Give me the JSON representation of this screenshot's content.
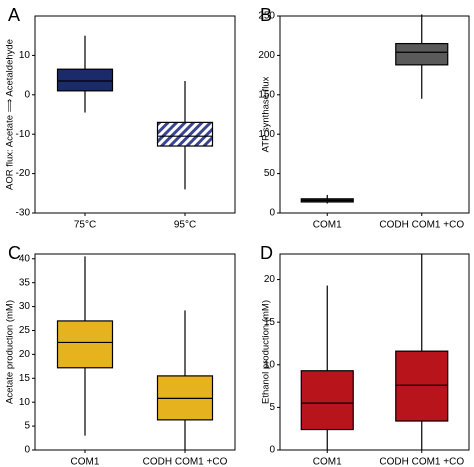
{
  "chart_data": [
    {
      "panel": "A",
      "type": "box",
      "ylabel": "AOR flux: Acetate ⟹ Acetaldehyde",
      "ylim": [
        -30,
        20
      ],
      "yticks": [
        -30,
        -20,
        -10,
        0,
        10
      ],
      "categories": [
        "75°C",
        "95°C"
      ],
      "boxes": [
        {
          "category": "75°C",
          "min": -4.5,
          "q1": 1,
          "median": 3.5,
          "q3": 6.5,
          "max": 15,
          "fill": "#1b2a6b",
          "pattern": "solid"
        },
        {
          "category": "95°C",
          "min": -24,
          "q1": -13,
          "median": -10.5,
          "q3": -7,
          "max": 3.5,
          "fill": "#6f78b8",
          "pattern": "hatched"
        }
      ]
    },
    {
      "panel": "B",
      "type": "box",
      "ylabel": "ATP synthase flux",
      "ylim": [
        0,
        250
      ],
      "yticks": [
        0,
        50,
        100,
        150,
        200,
        250
      ],
      "categories": [
        "COM1",
        "CODH COM1 +CO"
      ],
      "boxes": [
        {
          "category": "COM1",
          "min": 12,
          "q1": 14,
          "median": 16,
          "q3": 18,
          "max": 23,
          "fill": "#2a2a2a",
          "pattern": "solid"
        },
        {
          "category": "CODH COM1 +CO",
          "min": 145,
          "q1": 188,
          "median": 204,
          "q3": 215,
          "max": 252,
          "fill": "#5a5a5a",
          "pattern": "solid"
        }
      ]
    },
    {
      "panel": "C",
      "type": "box",
      "ylabel": "Acetate production (mM)",
      "ylim": [
        0,
        41
      ],
      "yticks": [
        0,
        5,
        10,
        15,
        20,
        25,
        30,
        35,
        40
      ],
      "categories": [
        "COM1",
        "CODH COM1 +CO"
      ],
      "boxes": [
        {
          "category": "COM1",
          "min": 3,
          "q1": 17.2,
          "median": 22.5,
          "q3": 27,
          "max": 40.5,
          "fill": "#e6b31e",
          "pattern": "solid"
        },
        {
          "category": "CODH COM1 +CO",
          "min": 0,
          "q1": 6.3,
          "median": 10.8,
          "q3": 15.5,
          "max": 29.2,
          "fill": "#e6b31e",
          "pattern": "solid"
        }
      ]
    },
    {
      "panel": "D",
      "type": "box",
      "ylabel": "Ethanol production (mM)",
      "ylim": [
        0,
        23
      ],
      "yticks": [
        0,
        5,
        10,
        15,
        20
      ],
      "categories": [
        "COM1",
        "CODH COM1 +CO"
      ],
      "boxes": [
        {
          "category": "COM1",
          "min": 0,
          "q1": 2.4,
          "median": 5.5,
          "q3": 9.3,
          "max": 19.3,
          "fill": "#b8141b",
          "pattern": "solid"
        },
        {
          "category": "CODH COM1 +CO",
          "min": 0,
          "q1": 3.4,
          "median": 7.6,
          "q3": 11.6,
          "max": 23,
          "fill": "#b8141b",
          "pattern": "solid"
        }
      ]
    }
  ]
}
